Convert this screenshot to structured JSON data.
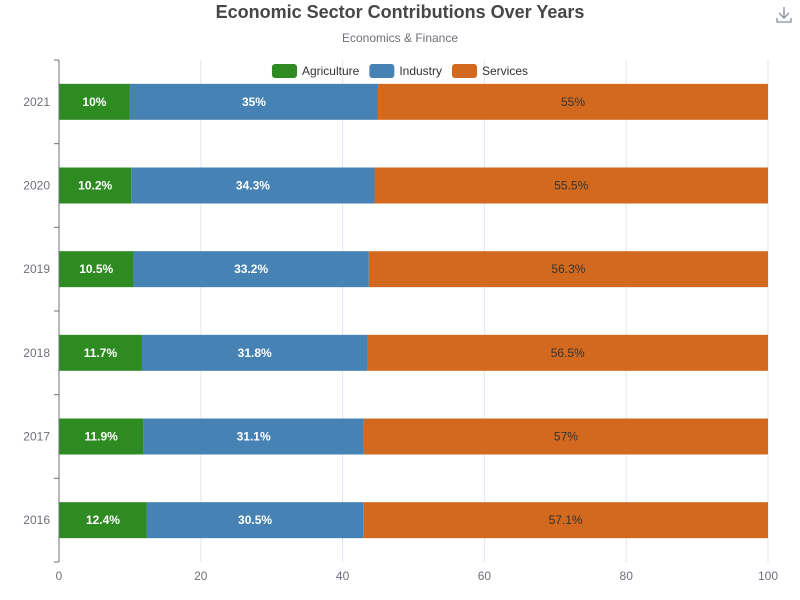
{
  "title": "Economic Sector Contributions Over Years",
  "subtitle": "Economics & Finance",
  "toolbar": {
    "download_icon": "download-icon"
  },
  "colors": {
    "Agriculture": "#2e8b22",
    "Industry": "#4682b4",
    "Services": "#d2691e",
    "axis": "#6e7079",
    "grid": "#e0e6f1"
  },
  "chart_data": {
    "type": "bar",
    "orientation": "horizontal",
    "stacked": true,
    "categories": [
      "2021",
      "2020",
      "2019",
      "2018",
      "2017",
      "2016"
    ],
    "series": [
      {
        "name": "Agriculture",
        "values": [
          10,
          10.2,
          10.5,
          11.7,
          11.9,
          12.4
        ]
      },
      {
        "name": "Industry",
        "values": [
          35,
          34.3,
          33.2,
          31.8,
          31.1,
          30.5
        ]
      },
      {
        "name": "Services",
        "values": [
          55,
          55.5,
          56.3,
          56.5,
          57,
          57.1
        ]
      }
    ],
    "value_suffix": "%",
    "xlim": [
      0,
      100
    ],
    "xticks": [
      0,
      20,
      40,
      60,
      80,
      100
    ],
    "grid": true,
    "legend": "top-center"
  }
}
